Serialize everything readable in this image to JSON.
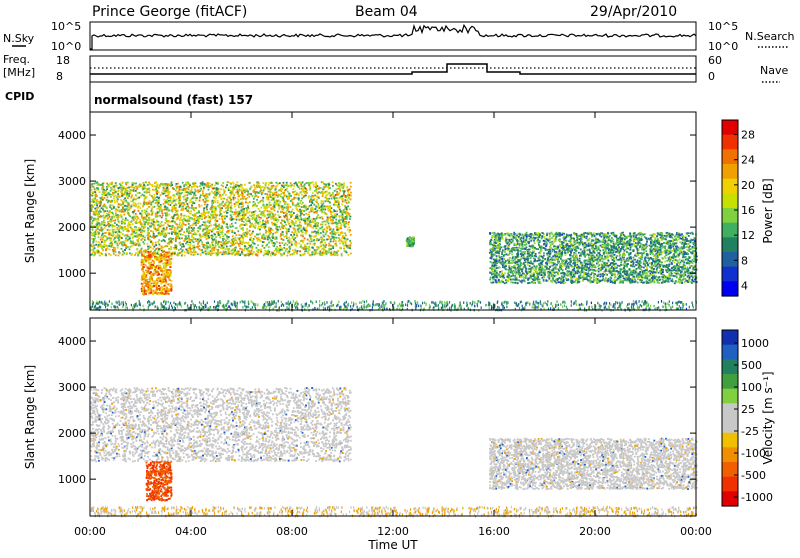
{
  "header": {
    "station": "Prince George (fitACF)",
    "beam": "Beam 04",
    "date": "29/Apr/2010"
  },
  "panels": {
    "nsky_label": "N.Sky",
    "nsky_ticks": [
      "10^5",
      "10^0"
    ],
    "nsearch_label": "N.Search",
    "nsearch_ticks": [
      "10^5",
      "10^0"
    ],
    "freq_label_1": "Freq.",
    "freq_label_2": "[MHz]",
    "freq_ticks": [
      "18",
      "8"
    ],
    "nave_label": "Nave",
    "nave_ticks": [
      "60",
      "0"
    ],
    "cpid_label": "CPID",
    "cpid_value": "normalsound (fast) 157"
  },
  "axes": {
    "ylabel": "Slant Range [km]",
    "yticks": [
      "4000",
      "3000",
      "2000",
      "1000"
    ],
    "xlabel": "Time UT",
    "xticks": [
      "00:00",
      "04:00",
      "08:00",
      "12:00",
      "16:00",
      "20:00",
      "00:00"
    ]
  },
  "colorbars": {
    "power": {
      "label": "Power [dB]",
      "ticks": [
        "28",
        "24",
        "20",
        "16",
        "12",
        "8",
        "4"
      ],
      "colors": [
        "#e00000",
        "#f03000",
        "#f07000",
        "#f0a000",
        "#f0d000",
        "#c8e000",
        "#80d040",
        "#40b060",
        "#208060",
        "#2060a0",
        "#1030d0",
        "#0000f0"
      ]
    },
    "velocity": {
      "label": "Velocity [m s⁻¹]",
      "ticks": [
        "1000",
        "500",
        "100",
        "25",
        "-25",
        "-100",
        "-500",
        "-1000"
      ],
      "colors": [
        "#1030b0",
        "#2060c0",
        "#208060",
        "#40a040",
        "#80d040",
        "#c8c8c8",
        "#c8c8c8",
        "#f0c000",
        "#f09000",
        "#f06000",
        "#f03000",
        "#e00000"
      ]
    }
  },
  "chart_data": {
    "type": "heatmap",
    "title": "Prince George (fitACF) Beam 04 29/Apr/2010",
    "xlabel": "Time UT",
    "ylabel": "Slant Range [km]",
    "xlim_hours": [
      0,
      24
    ],
    "ylim_km": [
      200,
      4500
    ],
    "power_regions_approx": [
      {
        "t_start": 0.0,
        "t_end": 10.3,
        "range_km": [
          1400,
          3000
        ],
        "power_db": [
          8,
          24
        ]
      },
      {
        "t_start": 2.0,
        "t_end": 3.2,
        "range_km": [
          550,
          1500
        ],
        "power_db": [
          16,
          28
        ]
      },
      {
        "t_start": 12.5,
        "t_end": 12.8,
        "range_km": [
          1600,
          1800
        ],
        "power_db": [
          8,
          16
        ]
      },
      {
        "t_start": 15.8,
        "t_end": 24.0,
        "range_km": [
          800,
          1900
        ],
        "power_db": [
          4,
          16
        ]
      }
    ],
    "velocity_regions_approx": [
      {
        "t_start": 0.0,
        "t_end": 10.3,
        "range_km": [
          1400,
          3000
        ],
        "velocity_ms": [
          -25,
          25
        ]
      },
      {
        "t_start": 2.2,
        "t_end": 3.2,
        "range_km": [
          550,
          1400
        ],
        "velocity_ms": [
          -1000,
          -500
        ]
      },
      {
        "t_start": 15.8,
        "t_end": 24.0,
        "range_km": [
          800,
          1900
        ],
        "velocity_ms": [
          -25,
          25
        ]
      }
    ]
  }
}
